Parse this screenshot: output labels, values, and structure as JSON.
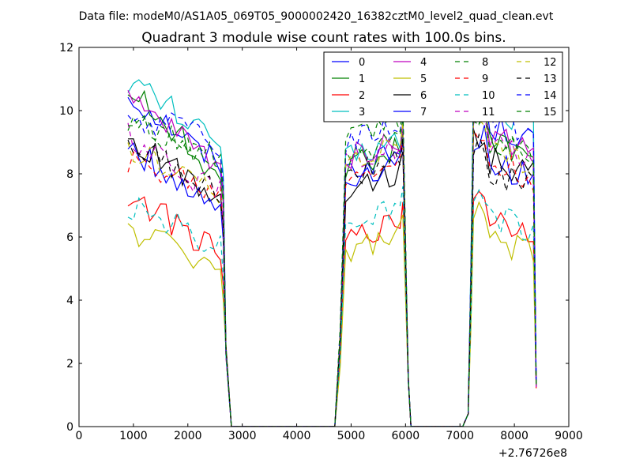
{
  "chart_data": {
    "type": "line",
    "suptitle": "Data file: modeM0/AS1A05_069T05_9000002420_16382cztM0_level2_quad_clean.evt",
    "title": "Quadrant 3 module wise count rates with 100.0s bins.",
    "xlabel": "",
    "ylabel": "",
    "x_offset_label": "+2.76726e8",
    "xlim": [
      0,
      9000
    ],
    "ylim": [
      0,
      12
    ],
    "xticks": [
      0,
      1000,
      2000,
      3000,
      4000,
      5000,
      6000,
      7000,
      8000,
      9000
    ],
    "yticks": [
      0,
      2,
      4,
      6,
      8,
      10,
      12
    ],
    "grid": false,
    "legend": {
      "position": "top-right",
      "columns": 4
    },
    "segments": [
      {
        "x_start": 900,
        "x_end": 2600,
        "drop_end": 2800
      },
      {
        "rise_start": 4700,
        "x_start": 4900,
        "x_end": 5900,
        "drop_end": 6100
      },
      {
        "rise_start": 7050,
        "x_start": 7250,
        "x_end": 8350,
        "drop_end": 8400
      }
    ],
    "series": [
      {
        "name": "0",
        "color": "#0000ff",
        "dash": "solid",
        "levels": [
          8.9,
          8.1,
          9.7
        ],
        "start": 10.5
      },
      {
        "name": "1",
        "color": "#008000",
        "dash": "solid",
        "levels": [
          8.6,
          8.2,
          9.2
        ],
        "start": 10.7
      },
      {
        "name": "2",
        "color": "#ff0000",
        "dash": "solid",
        "levels": [
          6.0,
          5.9,
          6.8
        ],
        "start": 7.3
      },
      {
        "name": "3",
        "color": "#00bfbf",
        "dash": "solid",
        "levels": [
          9.5,
          8.5,
          10.2
        ],
        "start": 11.0
      },
      {
        "name": "4",
        "color": "#bf00bf",
        "dash": "solid",
        "levels": [
          8.9,
          8.5,
          9.4
        ],
        "start": 10.3
      },
      {
        "name": "5",
        "color": "#bfbf00",
        "dash": "solid",
        "levels": [
          5.5,
          5.5,
          6.1
        ],
        "start": 6.2
      },
      {
        "name": "6",
        "color": "#000000",
        "dash": "solid",
        "levels": [
          7.8,
          7.5,
          8.6
        ],
        "start": 9.0
      },
      {
        "name": "7",
        "color": "#0000ff",
        "dash": "solid",
        "levels": [
          7.4,
          7.8,
          8.5
        ],
        "start": 8.8
      },
      {
        "name": "8",
        "color": "#008000",
        "dash": "dashed",
        "levels": [
          8.9,
          8.5,
          9.1
        ],
        "start": 9.5
      },
      {
        "name": "9",
        "color": "#ff0000",
        "dash": "dashed",
        "levels": [
          7.8,
          7.9,
          8.5
        ],
        "start": 8.3
      },
      {
        "name": "10",
        "color": "#00bfbf",
        "dash": "dashed",
        "levels": [
          6.2,
          6.4,
          6.8
        ],
        "start": 7.0
      },
      {
        "name": "11",
        "color": "#bf00bf",
        "dash": "dashed",
        "levels": [
          7.9,
          8.3,
          9.0
        ],
        "start": 9.2
      },
      {
        "name": "12",
        "color": "#bfbf00",
        "dash": "dashed",
        "levels": [
          7.9,
          8.4,
          8.8
        ],
        "start": 8.7
      },
      {
        "name": "13",
        "color": "#000000",
        "dash": "dashed",
        "levels": [
          7.9,
          7.9,
          8.2
        ],
        "start": 8.9
      },
      {
        "name": "14",
        "color": "#0000ff",
        "dash": "dashed",
        "levels": [
          9.3,
          9.0,
          9.9
        ],
        "start": 9.8
      },
      {
        "name": "15",
        "color": "#008000",
        "dash": "dashed",
        "levels": [
          8.9,
          9.1,
          9.2
        ],
        "start": 9.6
      }
    ]
  }
}
